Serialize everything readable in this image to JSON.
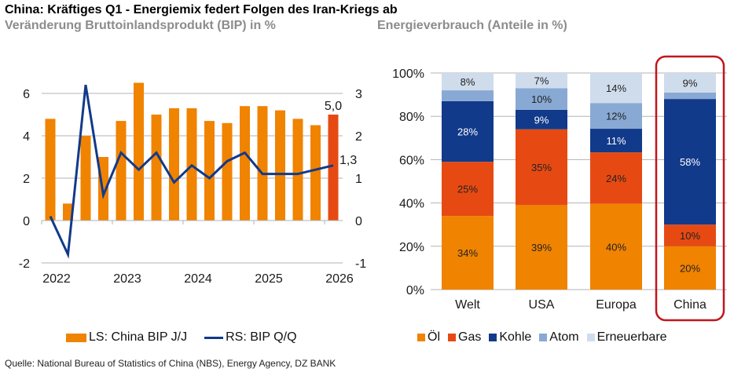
{
  "title": "China: Kräftiges Q1 - Energiemix federt Folgen des Iran-Kriegs ab",
  "source": "Quelle: National Bureau of Statistics of China (NBS), Energy Agency, DZ BANK",
  "colors": {
    "orange": "#f08300",
    "red_orange": "#e64a12",
    "navy": "#113a8a",
    "atom": "#88a9d3",
    "renew": "#cfdcec",
    "highlight_box": "#c0161c",
    "subtitle_gray": "#8c8c8c"
  },
  "chart_data": [
    {
      "type": "bar+line",
      "title": "Veränderung Bruttoinlandsprodukt (BIP) in %",
      "x": [
        "Q1 2022",
        "Q2 2022",
        "Q3 2022",
        "Q4 2022",
        "Q1 2023",
        "Q2 2023",
        "Q3 2023",
        "Q4 2023",
        "Q1 2024",
        "Q2 2024",
        "Q3 2024",
        "Q4 2024",
        "Q1 2025",
        "Q2 2025",
        "Q3 2025",
        "Q4 2025",
        "Q1 2026"
      ],
      "xtick_labels": [
        "2022",
        "2023",
        "2024",
        "2025",
        "2026"
      ],
      "series": [
        {
          "name": "LS: China BIP J/J",
          "axis": "left",
          "kind": "bar",
          "values": [
            4.8,
            0.8,
            4.0,
            3.0,
            4.7,
            6.5,
            5.0,
            5.3,
            5.3,
            4.7,
            4.6,
            5.4,
            5.4,
            5.2,
            4.8,
            4.5,
            5.0
          ]
        },
        {
          "name": "RS: BIP Q/Q",
          "axis": "right",
          "kind": "line",
          "values": [
            0.1,
            -0.8,
            3.2,
            0.6,
            1.6,
            1.2,
            1.6,
            0.9,
            1.3,
            1.0,
            1.4,
            1.6,
            1.1,
            1.1,
            1.1,
            1.2,
            1.3
          ]
        }
      ],
      "annotations": [
        {
          "text": "5,0",
          "series": "LS: China BIP J/J",
          "point": "Q1 2026"
        },
        {
          "text": "1,3",
          "series": "RS: BIP Q/Q",
          "point": "Q1 2026"
        }
      ],
      "ylim_left": [
        -2,
        7
      ],
      "yticks_left": [
        "-2",
        "0",
        "2",
        "4",
        "6"
      ],
      "ylim_right": [
        -1,
        3.5
      ],
      "yticks_right": [
        "-1",
        "0",
        "1",
        "2",
        "3"
      ],
      "grid": true,
      "legend": "bottom"
    },
    {
      "type": "stacked-bar",
      "title": "Energieverbrauch (Anteile in %)",
      "categories": [
        "Welt",
        "USA",
        "Europa",
        "China"
      ],
      "highlighted_category": "China",
      "series": [
        {
          "name": "Öl",
          "values": [
            34,
            39,
            40,
            20
          ],
          "labels": [
            "34%",
            "39%",
            "40%",
            "20%"
          ]
        },
        {
          "name": "Gas",
          "values": [
            25,
            35,
            24,
            10
          ],
          "labels": [
            "25%",
            "35%",
            "24%",
            "10%"
          ]
        },
        {
          "name": "Kohle",
          "values": [
            28,
            9,
            11,
            58
          ],
          "labels": [
            "28%",
            "9%",
            "11%",
            "58%"
          ]
        },
        {
          "name": "Atom",
          "values": [
            5,
            10,
            12,
            3
          ],
          "labels": [
            "",
            "10%",
            "12%",
            ""
          ]
        },
        {
          "name": "Erneuerbare",
          "values": [
            8,
            7,
            14,
            9
          ],
          "labels": [
            "8%",
            "7%",
            "14%",
            "9%"
          ]
        }
      ],
      "ylim": [
        0,
        100
      ],
      "yticks": [
        "0%",
        "20%",
        "40%",
        "60%",
        "80%",
        "100%"
      ],
      "grid": true,
      "legend": "bottom"
    }
  ]
}
